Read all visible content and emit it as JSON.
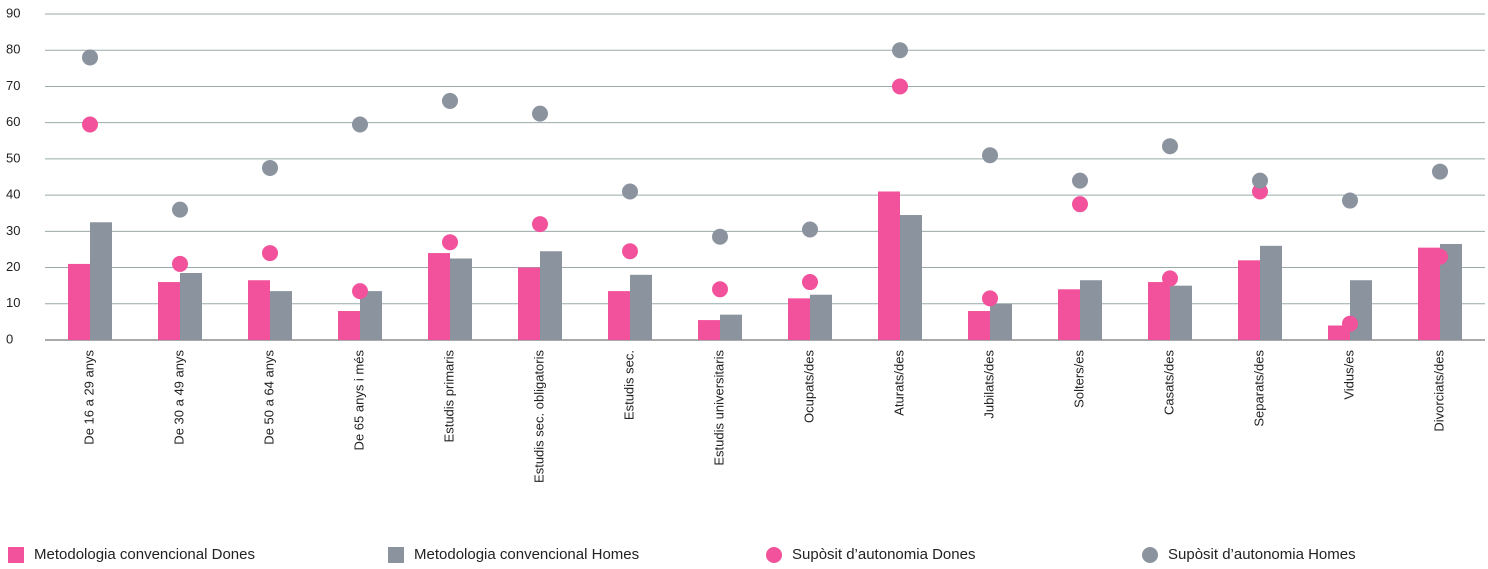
{
  "chart_data": {
    "type": "combo",
    "categories": [
      "De 16 a 29 anys",
      "De 30 a 49 anys",
      "De 50 a 64 anys",
      "De 65 anys i més",
      "Estudis primaris",
      "Estudis sec. obligatoris",
      "Estudis sec.",
      "Estudis universitaris",
      "Ocupats/des",
      "Aturats/des",
      "Jubilats/des",
      "Solters/es",
      "Casats/des",
      "Separats/des",
      "Vidus/es",
      "Divorciats/des"
    ],
    "series": [
      {
        "name": "Metodologia convencional Dones",
        "type": "bar",
        "color": "#f2529b",
        "values": [
          21,
          16,
          16.5,
          8,
          24,
          20,
          13.5,
          5.5,
          11.5,
          41,
          8,
          14,
          16,
          22,
          4,
          25.5
        ]
      },
      {
        "name": "Metodologia convencional Homes",
        "type": "bar",
        "color": "#8a939e",
        "values": [
          32.5,
          18.5,
          13.5,
          13.5,
          22.5,
          24.5,
          18,
          7,
          12.5,
          34.5,
          10,
          16.5,
          15,
          26,
          16.5,
          26.5
        ]
      },
      {
        "name": "Supòsit d’autonomia Dones",
        "type": "scatter",
        "color": "#f2529b",
        "values": [
          59.5,
          21,
          24,
          13.5,
          27,
          32,
          24.5,
          14,
          16,
          70,
          11.5,
          37.5,
          17,
          41,
          4.5,
          23
        ]
      },
      {
        "name": "Supòsit d’autonomia Homes",
        "type": "scatter",
        "color": "#8a939e",
        "values": [
          78,
          36,
          47.5,
          59.5,
          66,
          62.5,
          41,
          28.5,
          30.5,
          80,
          51,
          44,
          53.5,
          44,
          38.5,
          46.5
        ]
      }
    ],
    "ylim": [
      0,
      90
    ],
    "yticks": [
      0,
      10,
      20,
      30,
      40,
      50,
      60,
      70,
      80,
      90
    ],
    "grid": true,
    "legend": "bottom"
  }
}
